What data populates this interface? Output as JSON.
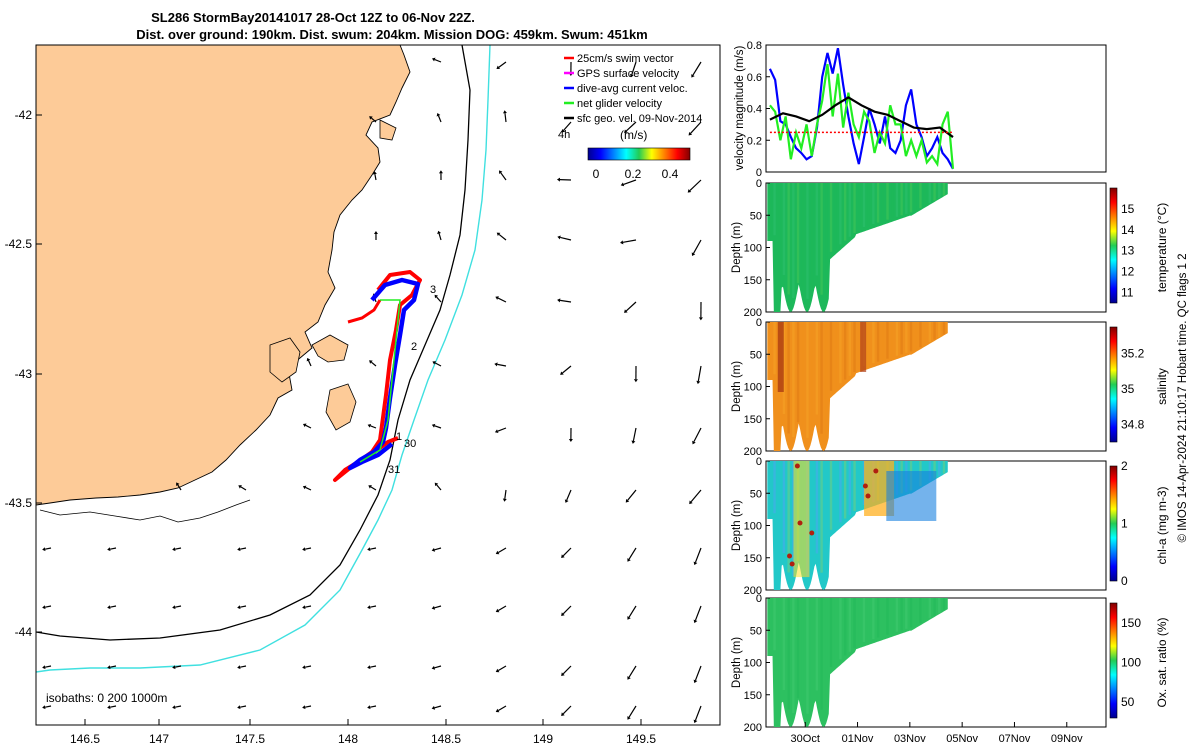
{
  "title": {
    "line1": "SL286 StormBay20141017 28-Oct 12Z to 06-Nov 22Z.",
    "line2": "Dist. over ground: 190km. Dist. swum: 204km. Mission DOG: 459km. Swum: 451km"
  },
  "credit": "© IMOS 14-Apr-2024 21:10:17 Hobart time. QC flags 1  2",
  "colors": {
    "land": "#fdcb98",
    "iso200": "#000000",
    "iso1000": "#40e0e0",
    "track_red": "#ff0000",
    "track_blue": "#0000ff",
    "net_green": "#22ee22"
  },
  "map": {
    "xticks": [
      "146.5",
      "147",
      "147.5",
      "148",
      "148.5",
      "149",
      "149.5"
    ],
    "yticks": [
      "-42",
      "-42.5",
      "-43",
      "-43.5",
      "-44"
    ],
    "legend": [
      {
        "label": "25cm/s swim vector",
        "color": "#ff0000"
      },
      {
        "label": "GPS surface velocity",
        "color": "#ff00ff"
      },
      {
        "label": "dive-avg current veloc.",
        "color": "#0000ff"
      },
      {
        "label": "net glider velocity",
        "color": "#22ee22"
      },
      {
        "label": "sfc geo. vel. 09-Nov-2014",
        "color": "#000000"
      }
    ],
    "legend_extra": "4h",
    "colorbar_label": "(m/s)",
    "colorbar_ticks": [
      "0",
      "0.2",
      "0.4"
    ],
    "isobaths": "isobaths: 0   200  1000m",
    "track_labels": [
      "3",
      "2",
      "1",
      "30",
      "31"
    ]
  },
  "chart_data": [
    {
      "type": "line",
      "ylabel": "velocity magnitude (m/s)",
      "ylim": [
        0,
        0.8
      ],
      "yticks": [
        "0",
        "0.2",
        "0.4",
        "0.6",
        "0.8"
      ],
      "series": [
        {
          "name": "dive-avg current",
          "color": "#0000ff",
          "x": [
            0,
            0.2,
            0.4,
            0.6,
            0.8,
            1.0,
            1.2,
            1.4,
            1.6,
            1.8,
            2.0,
            2.2,
            2.4,
            2.6,
            2.8,
            3.0,
            3.2,
            3.4,
            3.6,
            3.8,
            4.0,
            4.2,
            4.4,
            4.6,
            4.8,
            5.0,
            5.2,
            5.4,
            5.6,
            5.8,
            6.0,
            6.2,
            6.4,
            6.6,
            6.8,
            7.0
          ],
          "y": [
            0.65,
            0.58,
            0.32,
            0.3,
            0.22,
            0.15,
            0.12,
            0.08,
            0.1,
            0.28,
            0.6,
            0.75,
            0.62,
            0.78,
            0.55,
            0.35,
            0.18,
            0.05,
            0.22,
            0.4,
            0.3,
            0.18,
            0.35,
            0.15,
            0.12,
            0.2,
            0.42,
            0.52,
            0.3,
            0.22,
            0.1,
            0.15,
            0.22,
            0.12,
            0.08,
            0.02
          ]
        },
        {
          "name": "net glider velocity",
          "color": "#22ee22",
          "x": [
            0,
            0.2,
            0.4,
            0.6,
            0.8,
            1.0,
            1.2,
            1.4,
            1.6,
            1.8,
            2.0,
            2.2,
            2.4,
            2.6,
            2.8,
            3.0,
            3.2,
            3.4,
            3.6,
            3.8,
            4.0,
            4.2,
            4.4,
            4.6,
            4.8,
            5.0,
            5.2,
            5.4,
            5.6,
            5.8,
            6.0,
            6.2,
            6.4,
            6.6,
            6.8,
            7.0
          ],
          "y": [
            0.42,
            0.38,
            0.2,
            0.35,
            0.08,
            0.25,
            0.15,
            0.3,
            0.1,
            0.3,
            0.45,
            0.68,
            0.35,
            0.62,
            0.28,
            0.5,
            0.3,
            0.22,
            0.38,
            0.32,
            0.12,
            0.25,
            0.18,
            0.42,
            0.3,
            0.3,
            0.1,
            0.2,
            0.1,
            0.2,
            0.06,
            0.1,
            0.05,
            0.3,
            0.38,
            0.02
          ]
        },
        {
          "name": "surface geostrophic",
          "color": "#000000",
          "x": [
            0,
            0.5,
            1.0,
            1.5,
            2.0,
            2.5,
            3.0,
            3.5,
            4.0,
            4.5,
            5.0,
            5.5,
            6.0,
            6.5,
            7.0
          ],
          "y": [
            0.33,
            0.37,
            0.35,
            0.32,
            0.36,
            0.42,
            0.47,
            0.42,
            0.38,
            0.36,
            0.32,
            0.28,
            0.27,
            0.28,
            0.22
          ]
        },
        {
          "name": "swim speed",
          "color": "#ff0000",
          "x": [
            0,
            7.0
          ],
          "y": [
            0.25,
            0.25
          ]
        }
      ]
    },
    {
      "type": "heatmap",
      "name": "temperature",
      "ylabel": "Depth (m)",
      "cbar_label": "temperature (°C)",
      "cbar_ticks": [
        "11",
        "12",
        "13",
        "14",
        "15"
      ],
      "yticks": [
        "0",
        "50",
        "100",
        "150",
        "200"
      ],
      "yrange": [
        0,
        200
      ],
      "crange": [
        10.5,
        16
      ]
    },
    {
      "type": "heatmap",
      "name": "salinity",
      "ylabel": "Depth (m)",
      "cbar_label": "salinity",
      "cbar_ticks": [
        "34.8",
        "35",
        "35.2"
      ],
      "yticks": [
        "0",
        "50",
        "100",
        "150",
        "200"
      ],
      "yrange": [
        0,
        200
      ],
      "crange": [
        34.7,
        35.35
      ]
    },
    {
      "type": "heatmap",
      "name": "chlorophyll",
      "ylabel": "Depth (m)",
      "cbar_label": "chl-a (mg m-3)",
      "cbar_ticks": [
        "0",
        "1",
        "2"
      ],
      "yticks": [
        "0",
        "50",
        "100",
        "150",
        "200"
      ],
      "yrange": [
        0,
        200
      ],
      "crange": [
        0,
        2
      ]
    },
    {
      "type": "heatmap",
      "name": "oxygen",
      "ylabel": "Depth (m)",
      "cbar_label": "Ox. sat. ratio (%)",
      "cbar_ticks": [
        "50",
        "100",
        "150"
      ],
      "yticks": [
        "0",
        "50",
        "100",
        "150",
        "200"
      ],
      "yrange": [
        0,
        200
      ],
      "crange": [
        30,
        175
      ]
    }
  ],
  "time_axis": {
    "ticks": [
      "30Oct",
      "01Nov",
      "03Nov",
      "05Nov",
      "07Nov",
      "09Nov"
    ],
    "range_days": [
      0,
      13
    ]
  }
}
